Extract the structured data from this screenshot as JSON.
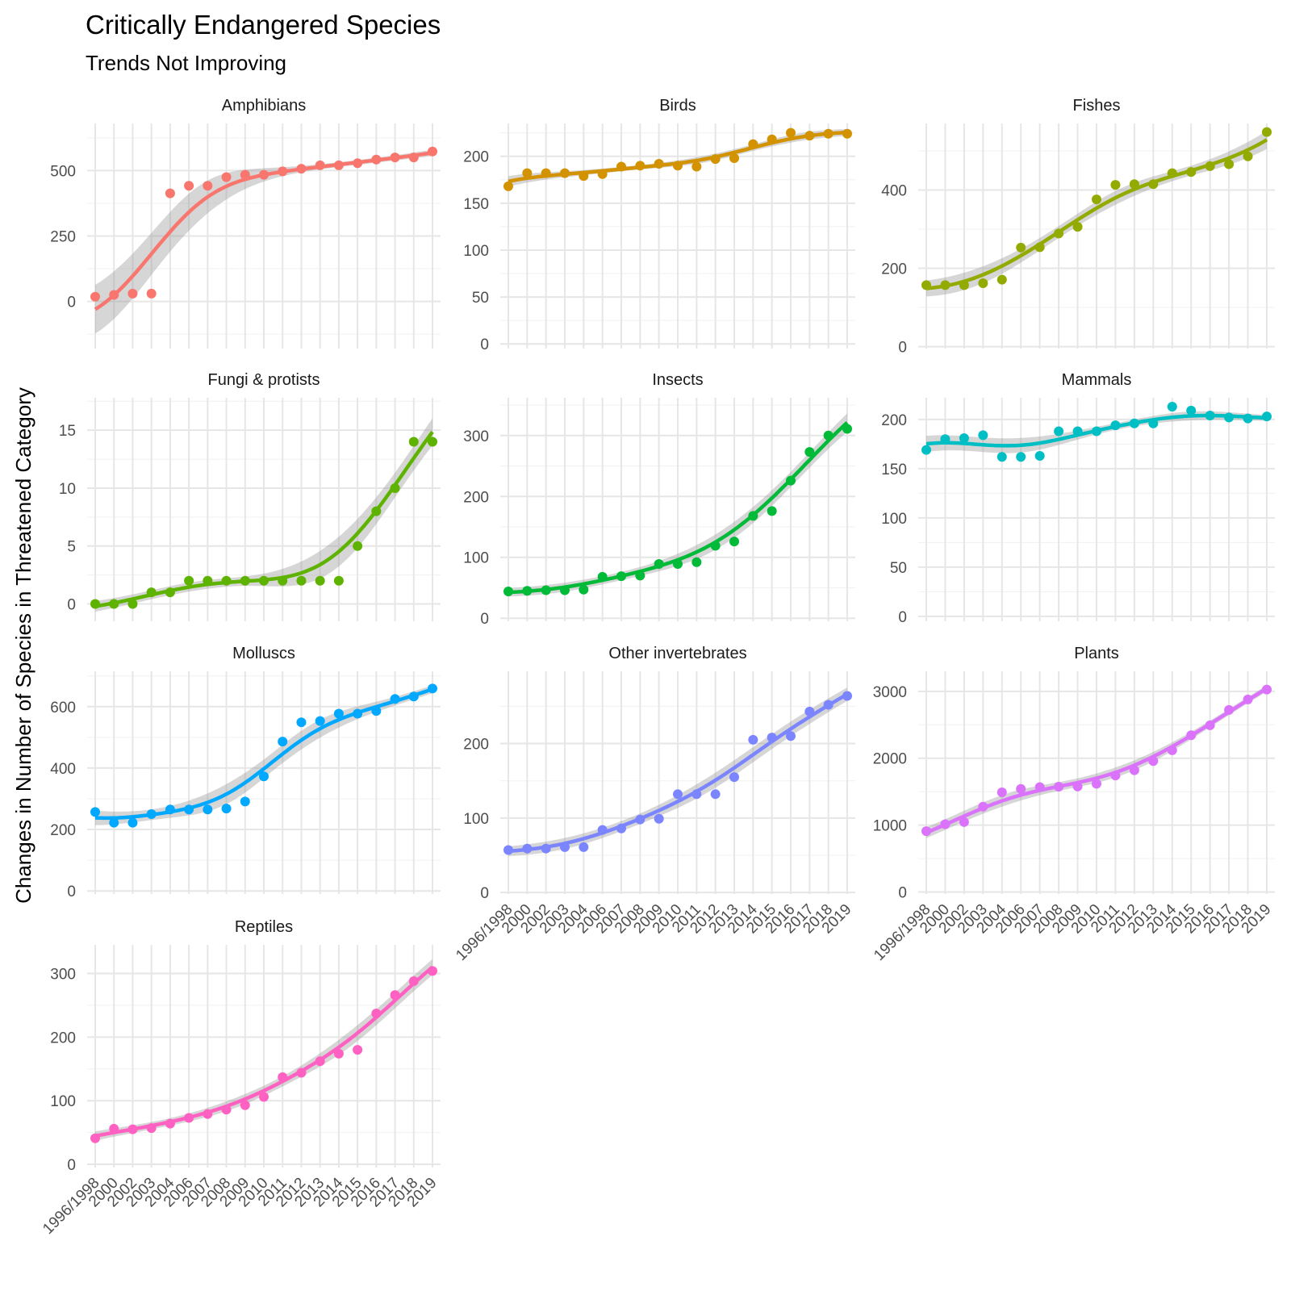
{
  "chart_data": {
    "type": "scatter",
    "title": "Critically Endangered Species",
    "subtitle": "Trends Not Improving",
    "xlabel": "",
    "ylabel": "Changes in Number of Species in Threatened Category",
    "categories": [
      "1996/1998",
      "2000",
      "2002",
      "2003",
      "2004",
      "2006",
      "2007",
      "2008",
      "2009",
      "2010",
      "2011",
      "2012",
      "2013",
      "2014",
      "2015",
      "2016",
      "2017",
      "2018",
      "2019"
    ],
    "grid": true,
    "legend": "none",
    "panels": [
      {
        "name": "Amphibians",
        "color": "#F8766D",
        "ylim": [
          -180,
          680
        ],
        "yticks": [
          0,
          250,
          500
        ],
        "values": [
          18,
          25,
          30,
          30,
          413,
          442,
          442,
          475,
          484,
          484,
          497,
          507,
          520,
          520,
          528,
          542,
          550,
          550,
          573
        ]
      },
      {
        "name": "Birds",
        "color": "#D39200",
        "ylim": [
          -5,
          235
        ],
        "yticks": [
          0,
          50,
          100,
          150,
          200
        ],
        "values": [
          168,
          182,
          182,
          182,
          179,
          181,
          189,
          190,
          192,
          190,
          189,
          197,
          198,
          213,
          218,
          225,
          222,
          224,
          224
        ]
      },
      {
        "name": "Fishes",
        "color": "#93AA00",
        "ylim": [
          -5,
          570
        ],
        "yticks": [
          0,
          200,
          400
        ],
        "values": [
          157,
          157,
          157,
          162,
          171,
          253,
          254,
          289,
          306,
          376,
          413,
          415,
          415,
          443,
          446,
          461,
          466,
          486,
          548
        ]
      },
      {
        "name": "Fungi & protists",
        "color": "#5EB300",
        "ylim": [
          -1.5,
          17.8
        ],
        "yticks": [
          0,
          5,
          10,
          15
        ],
        "values": [
          0,
          0,
          0,
          1,
          1,
          2,
          2,
          2,
          2,
          2,
          2,
          2,
          2,
          2,
          5,
          8,
          10,
          14,
          14
        ]
      },
      {
        "name": "Insects",
        "color": "#00BA38",
        "ylim": [
          -5,
          362
        ],
        "yticks": [
          0,
          100,
          200,
          300
        ],
        "values": [
          44,
          45,
          46,
          46,
          47,
          68,
          69,
          70,
          89,
          89,
          92,
          119,
          126,
          168,
          176,
          226,
          273,
          300,
          311
        ]
      },
      {
        "name": "Mammals",
        "color": "#00BFC4",
        "ylim": [
          -5,
          222
        ],
        "yticks": [
          0,
          50,
          100,
          150,
          200
        ],
        "values": [
          169,
          180,
          181,
          184,
          162,
          162,
          163,
          188,
          188,
          188,
          194,
          196,
          196,
          213,
          209,
          204,
          202,
          201,
          203
        ]
      },
      {
        "name": "Molluscs",
        "color": "#00A9FF",
        "ylim": [
          -10,
          715
        ],
        "yticks": [
          0,
          200,
          400,
          600
        ],
        "values": [
          257,
          222,
          222,
          250,
          265,
          265,
          265,
          268,
          291,
          373,
          486,
          549,
          553,
          577,
          577,
          586,
          625,
          633,
          659
        ]
      },
      {
        "name": "Other invertebrates",
        "color": "#7B85FF",
        "ylim": [
          -2,
          297
        ],
        "yticks": [
          0,
          100,
          200
        ],
        "values": [
          57,
          59,
          59,
          61,
          61,
          84,
          86,
          98,
          99,
          132,
          132,
          132,
          155,
          205,
          208,
          210,
          243,
          252,
          264
        ]
      },
      {
        "name": "Plants",
        "color": "#DB72FB",
        "ylim": [
          -30,
          3300
        ],
        "yticks": [
          0,
          1000,
          2000,
          3000
        ],
        "values": [
          909,
          1014,
          1046,
          1276,
          1490,
          1541,
          1569,
          1575,
          1577,
          1619,
          1742,
          1821,
          1957,
          2119,
          2344,
          2493,
          2722,
          2879,
          3027
        ]
      },
      {
        "name": "Reptiles",
        "color": "#FF61C3",
        "ylim": [
          -5,
          345
        ],
        "yticks": [
          0,
          100,
          200,
          300
        ],
        "values": [
          41,
          56,
          55,
          57,
          64,
          73,
          79,
          86,
          93,
          106,
          137,
          144,
          162,
          174,
          180,
          237,
          266,
          288,
          304
        ]
      }
    ]
  }
}
